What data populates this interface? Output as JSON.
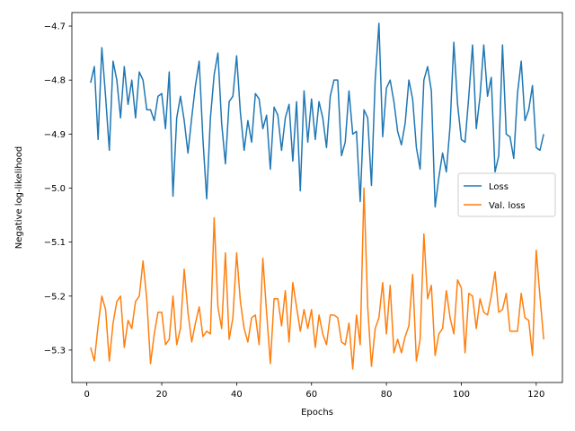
{
  "chart_data": {
    "type": "line",
    "xlabel": "Epochs",
    "ylabel": "Negative log-likelihood",
    "xlim": [
      -4,
      127
    ],
    "ylim": [
      -5.36,
      -4.675
    ],
    "xticks": [
      0,
      20,
      40,
      60,
      80,
      100,
      120
    ],
    "yticks": [
      -5.3,
      -5.2,
      -5.1,
      -5.0,
      -4.9,
      -4.8,
      -4.7
    ],
    "ytick_labels": [
      "−5.3",
      "−5.2",
      "−5.1",
      "−5.0",
      "−4.9",
      "−4.8",
      "−4.7"
    ],
    "xtick_labels": [
      "0",
      "20",
      "40",
      "60",
      "80",
      "100",
      "120"
    ],
    "grid": false,
    "legend_position": "center-right",
    "x_start": 1,
    "series": [
      {
        "name": "Loss",
        "color": "#1f77b4",
        "values": [
          -4.805,
          -4.775,
          -4.91,
          -4.74,
          -4.83,
          -4.93,
          -4.765,
          -4.8,
          -4.87,
          -4.775,
          -4.845,
          -4.8,
          -4.87,
          -4.785,
          -4.8,
          -4.855,
          -4.855,
          -4.875,
          -4.83,
          -4.825,
          -4.89,
          -4.785,
          -5.015,
          -4.87,
          -4.83,
          -4.875,
          -4.935,
          -4.87,
          -4.81,
          -4.765,
          -4.91,
          -5.02,
          -4.87,
          -4.79,
          -4.75,
          -4.88,
          -4.955,
          -4.84,
          -4.83,
          -4.755,
          -4.86,
          -4.93,
          -4.875,
          -4.915,
          -4.825,
          -4.835,
          -4.89,
          -4.865,
          -4.965,
          -4.85,
          -4.865,
          -4.93,
          -4.87,
          -4.845,
          -4.95,
          -4.84,
          -5.005,
          -4.82,
          -4.915,
          -4.835,
          -4.91,
          -4.84,
          -4.87,
          -4.925,
          -4.83,
          -4.8,
          -4.8,
          -4.94,
          -4.915,
          -4.82,
          -4.9,
          -4.895,
          -5.025,
          -4.855,
          -4.87,
          -4.995,
          -4.8,
          -4.695,
          -4.905,
          -4.815,
          -4.8,
          -4.84,
          -4.895,
          -4.92,
          -4.88,
          -4.8,
          -4.835,
          -4.925,
          -4.965,
          -4.8,
          -4.775,
          -4.82,
          -5.035,
          -4.98,
          -4.935,
          -4.97,
          -4.885,
          -4.73,
          -4.845,
          -4.91,
          -4.915,
          -4.83,
          -4.735,
          -4.89,
          -4.83,
          -4.735,
          -4.83,
          -4.795,
          -4.97,
          -4.94,
          -4.735,
          -4.9,
          -4.905,
          -4.945,
          -4.825,
          -4.765,
          -4.875,
          -4.855,
          -4.81,
          -4.925,
          -4.93,
          -4.9
        ]
      },
      {
        "name": "Val. loss",
        "color": "#ff7f0e",
        "values": [
          -5.295,
          -5.32,
          -5.255,
          -5.2,
          -5.225,
          -5.32,
          -5.25,
          -5.21,
          -5.2,
          -5.295,
          -5.245,
          -5.26,
          -5.21,
          -5.2,
          -5.135,
          -5.205,
          -5.325,
          -5.27,
          -5.23,
          -5.23,
          -5.29,
          -5.28,
          -5.2,
          -5.29,
          -5.26,
          -5.15,
          -5.23,
          -5.285,
          -5.25,
          -5.22,
          -5.275,
          -5.265,
          -5.27,
          -5.055,
          -5.22,
          -5.26,
          -5.12,
          -5.28,
          -5.24,
          -5.12,
          -5.21,
          -5.26,
          -5.285,
          -5.24,
          -5.235,
          -5.29,
          -5.13,
          -5.23,
          -5.325,
          -5.205,
          -5.205,
          -5.255,
          -5.19,
          -5.285,
          -5.175,
          -5.22,
          -5.265,
          -5.225,
          -5.26,
          -5.225,
          -5.295,
          -5.235,
          -5.27,
          -5.29,
          -5.235,
          -5.235,
          -5.24,
          -5.285,
          -5.29,
          -5.25,
          -5.335,
          -5.235,
          -5.29,
          -5.0,
          -5.22,
          -5.33,
          -5.26,
          -5.24,
          -5.175,
          -5.27,
          -5.18,
          -5.305,
          -5.28,
          -5.305,
          -5.275,
          -5.255,
          -5.16,
          -5.32,
          -5.28,
          -5.085,
          -5.205,
          -5.18,
          -5.31,
          -5.27,
          -5.26,
          -5.19,
          -5.24,
          -5.27,
          -5.17,
          -5.185,
          -5.305,
          -5.195,
          -5.2,
          -5.26,
          -5.205,
          -5.23,
          -5.235,
          -5.2,
          -5.155,
          -5.23,
          -5.225,
          -5.195,
          -5.265,
          -5.265,
          -5.265,
          -5.195,
          -5.24,
          -5.245,
          -5.31,
          -5.115,
          -5.2,
          -5.28
        ]
      }
    ]
  }
}
